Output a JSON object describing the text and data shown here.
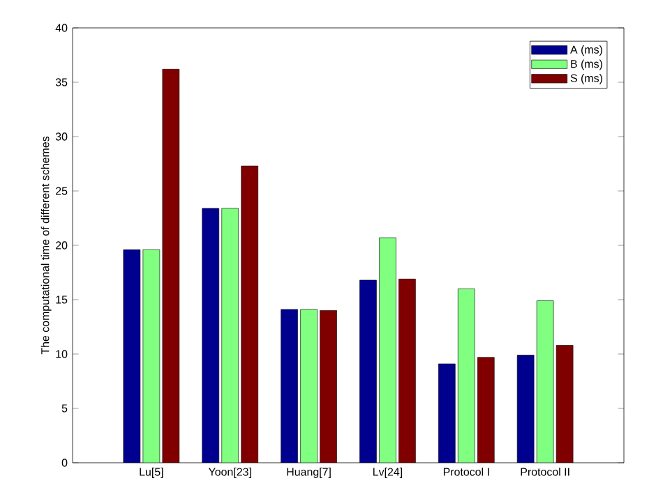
{
  "chart_data": {
    "type": "bar",
    "ylabel": "The computational time of different schemes",
    "categories": [
      "Lu[5]",
      "Yoon[23]",
      "Huang[7]",
      "Lv[24]",
      "Protocol I",
      "Protocol II"
    ],
    "series": [
      {
        "name": "A (ms)",
        "color": "#00008f",
        "values": [
          19.6,
          23.4,
          14.1,
          16.8,
          9.1,
          9.9
        ]
      },
      {
        "name": "B (ms)",
        "color": "#80ff80",
        "values": [
          19.6,
          23.4,
          14.1,
          20.7,
          16.0,
          14.9
        ]
      },
      {
        "name": "S (ms)",
        "color": "#800000",
        "values": [
          36.2,
          27.3,
          14.0,
          16.9,
          9.7,
          10.8
        ]
      }
    ],
    "ylim": [
      0,
      40
    ],
    "yticks": [
      0,
      5,
      10,
      15,
      20,
      25,
      30,
      35,
      40
    ],
    "legend": "top right",
    "grid": false
  }
}
